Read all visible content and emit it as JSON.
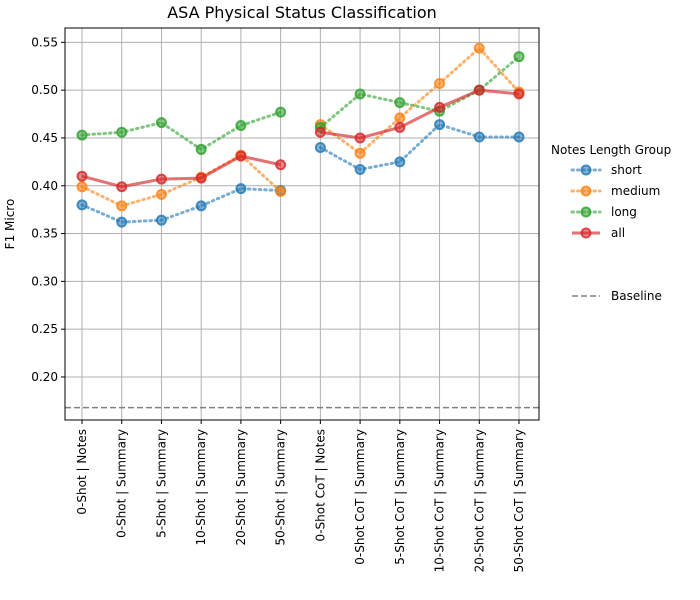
{
  "chart_data": {
    "type": "line",
    "title": "ASA Physical Status Classification",
    "xlabel": "",
    "ylabel": "F1 Micro",
    "ylim": [
      0.155,
      0.565
    ],
    "yticks": [
      "0.20",
      "0.25",
      "0.30",
      "0.35",
      "0.40",
      "0.45",
      "0.50",
      "0.55"
    ],
    "ytick_values": [
      0.2,
      0.25,
      0.3,
      0.35,
      0.4,
      0.45,
      0.5,
      0.55
    ],
    "grid": true,
    "categories": [
      "0-Shot | Notes",
      "0-Shot | Summary",
      "5-Shot | Summary",
      "10-Shot | Summary",
      "20-Shot | Summary",
      "50-Shot | Summary",
      "0-Shot CoT | Notes",
      "0-Shot CoT | Summary",
      "5-Shot CoT | Summary",
      "10-Shot CoT | Summary",
      "20-Shot CoT | Summary",
      "50-Shot CoT | Summary"
    ],
    "segments": [
      [
        0,
        5
      ],
      [
        6,
        11
      ]
    ],
    "series": [
      {
        "name": "short",
        "color": "#1f77b4",
        "style": "dotted",
        "values": [
          0.38,
          0.362,
          0.364,
          0.379,
          0.397,
          0.395,
          0.44,
          0.417,
          0.425,
          0.464,
          0.451,
          0.451
        ]
      },
      {
        "name": "medium",
        "color": "#ff7f0e",
        "style": "dotted",
        "values": [
          0.399,
          0.379,
          0.391,
          0.409,
          0.432,
          0.394,
          0.464,
          0.434,
          0.471,
          0.507,
          0.544,
          0.498
        ]
      },
      {
        "name": "long",
        "color": "#2ca02c",
        "style": "dotted",
        "values": [
          0.453,
          0.456,
          0.466,
          0.438,
          0.463,
          0.477,
          0.461,
          0.496,
          0.487,
          0.478,
          0.5,
          0.535
        ]
      },
      {
        "name": "all",
        "color": "#d62728",
        "style": "solid",
        "values": [
          0.41,
          0.399,
          0.407,
          0.408,
          0.431,
          0.422,
          0.456,
          0.45,
          0.461,
          0.482,
          0.5,
          0.496
        ]
      }
    ],
    "baseline": {
      "name": "Baseline",
      "value": 0.168,
      "color": "#808080"
    },
    "legend": {
      "title": "Notes Length Group",
      "placement": "outside-right"
    }
  }
}
